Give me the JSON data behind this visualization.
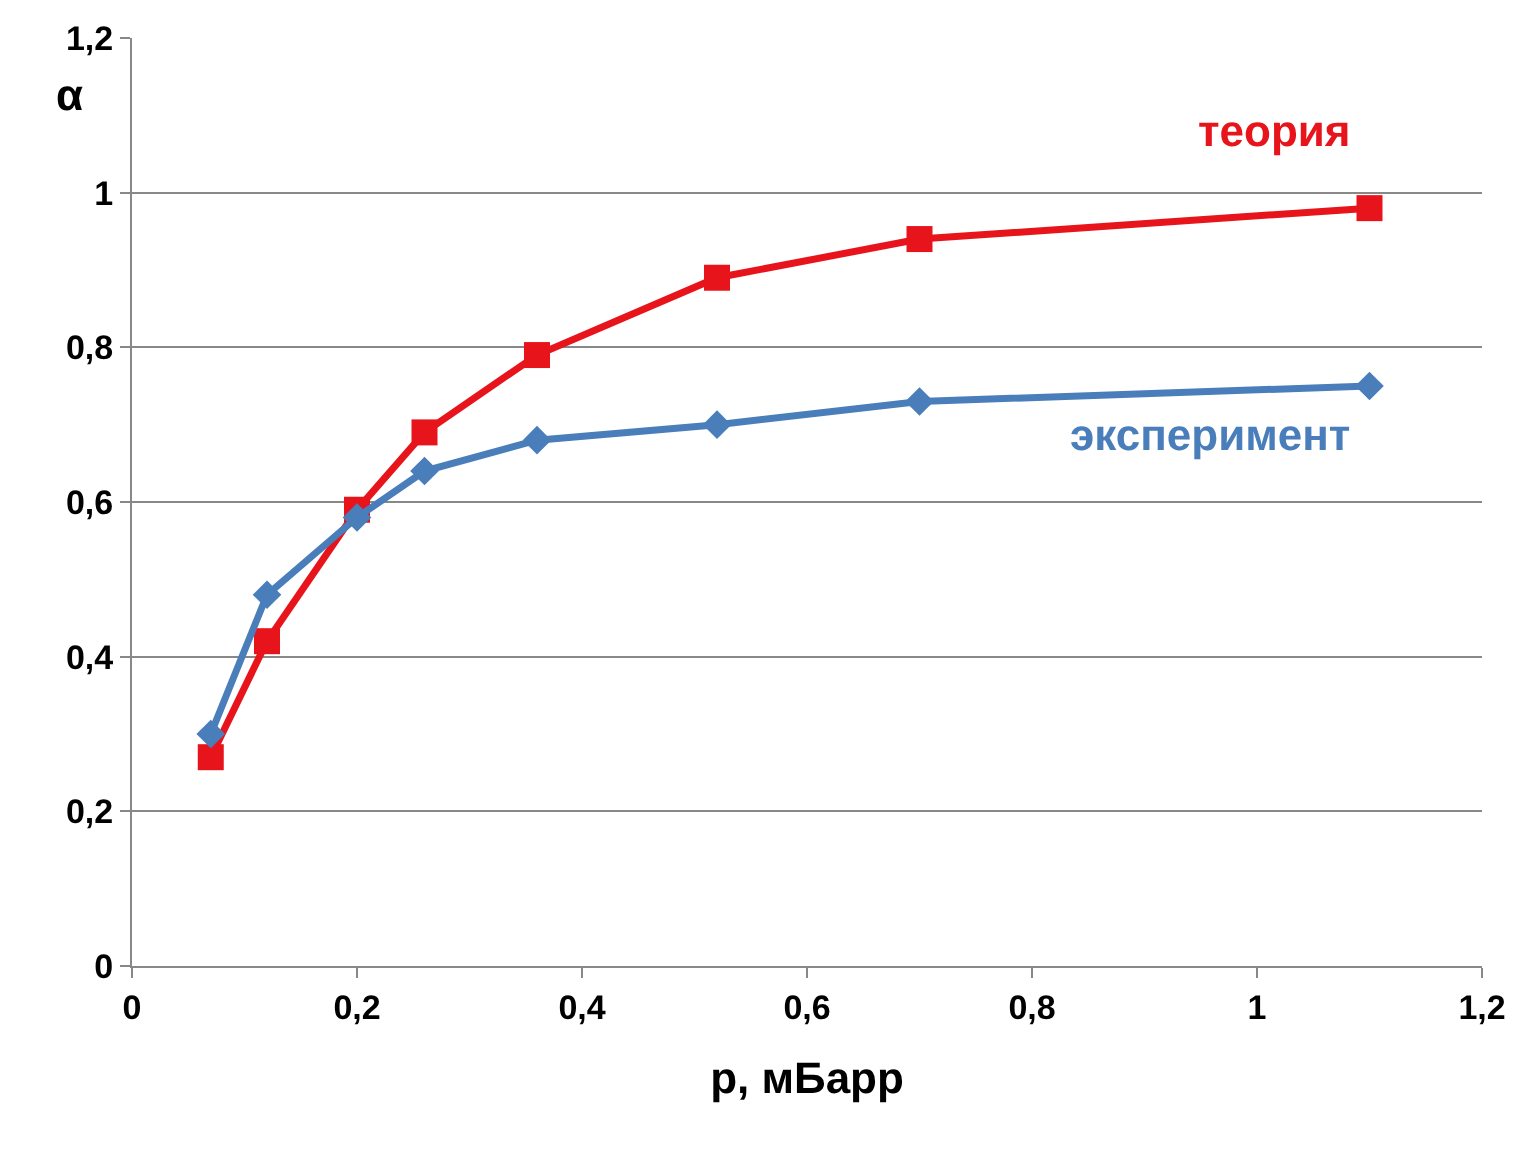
{
  "chart_data": {
    "type": "line",
    "xlabel": "p, мБарр",
    "ylabel": "α",
    "x": [
      0.07,
      0.12,
      0.2,
      0.26,
      0.36,
      0.52,
      0.7,
      1.1
    ],
    "series": [
      {
        "name": "эксперимент",
        "color": "#4a7ebb",
        "marker": "diamond",
        "values": [
          0.3,
          0.48,
          0.58,
          0.64,
          0.68,
          0.7,
          0.73,
          0.75
        ]
      },
      {
        "name": "теория",
        "color": "#e8141b",
        "marker": "square",
        "values": [
          0.27,
          0.42,
          0.59,
          0.69,
          0.79,
          0.89,
          0.94,
          0.98
        ]
      }
    ],
    "xlim": [
      0,
      1.2
    ],
    "xticks": [
      0,
      {
        "value": 0.2,
        "label": "0,2"
      },
      {
        "value": 0.4,
        "label": "0,4"
      },
      {
        "value": 0.6,
        "label": "0,6"
      },
      {
        "value": 0.8,
        "label": "0,8"
      },
      1,
      {
        "value": 1.2,
        "label": "1,2"
      }
    ],
    "ylim": [
      0,
      1.2
    ],
    "yticks": [
      0,
      {
        "value": 0.2,
        "label": "0,2"
      },
      {
        "value": 0.4,
        "label": "0,4"
      },
      {
        "value": 0.6,
        "label": "0,6"
      },
      {
        "value": 0.8,
        "label": "0,8"
      },
      1,
      {
        "value": 1.2,
        "label": "1,2"
      }
    ],
    "grid": "y",
    "legend": false,
    "line_style": "solid"
  }
}
